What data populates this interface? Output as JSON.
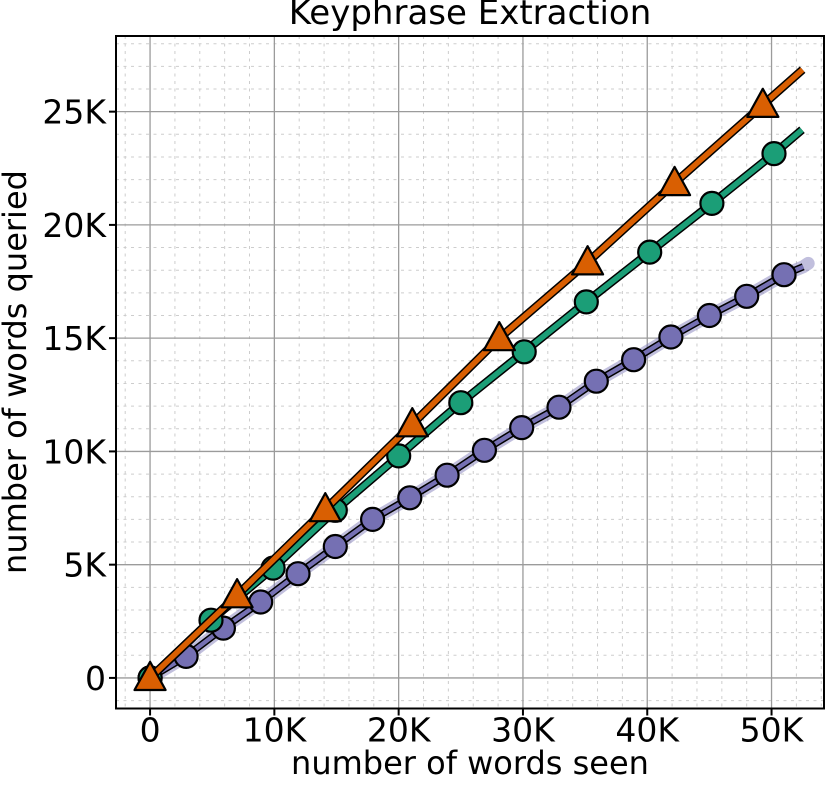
{
  "chart_data": {
    "type": "line",
    "title": "Keyphrase Extraction",
    "xlabel": "number of words seen",
    "ylabel": "number of words queried",
    "units": "axis values in thousands of words (K)",
    "xlim": [
      -2.74,
      54.22
    ],
    "ylim": [
      -1.35,
      28.34
    ],
    "legend": false,
    "grid": {
      "major": true,
      "minor": true,
      "x_minor_step": 2,
      "y_minor_step": 1,
      "major_color": "#9b9b9b",
      "minor_color": "#cdcdcd"
    },
    "x_ticks": [
      {
        "v": 0,
        "label": "0"
      },
      {
        "v": 10,
        "label": "10K"
      },
      {
        "v": 20,
        "label": "20K"
      },
      {
        "v": 30,
        "label": "30K"
      },
      {
        "v": 40,
        "label": "40K"
      },
      {
        "v": 50,
        "label": "50K"
      }
    ],
    "y_ticks": [
      {
        "v": 0,
        "label": "0"
      },
      {
        "v": 5,
        "label": "5K"
      },
      {
        "v": 10,
        "label": "10K"
      },
      {
        "v": 15,
        "label": "15K"
      },
      {
        "v": 20,
        "label": "20K"
      },
      {
        "v": 25,
        "label": "25K"
      }
    ],
    "series": [
      {
        "name": "purple-circle-series",
        "marker": "circle",
        "marker_size": 11.5,
        "line_width": 4.3,
        "color": "#7570b3",
        "band": {
          "color": "#7570b3",
          "opacity": 0.45,
          "width": 13,
          "end": [
            52.95,
            18.3
          ]
        },
        "points": [
          [
            0,
            0
          ],
          [
            2.9,
            0.95
          ],
          [
            5.9,
            2.2
          ],
          [
            8.9,
            3.35
          ],
          [
            11.9,
            4.6
          ],
          [
            14.9,
            5.8
          ],
          [
            17.9,
            7.0
          ],
          [
            20.9,
            7.95
          ],
          [
            23.9,
            8.95
          ],
          [
            26.9,
            10.05
          ],
          [
            29.9,
            11.05
          ],
          [
            32.9,
            11.95
          ],
          [
            35.9,
            13.1
          ],
          [
            38.9,
            14.05
          ],
          [
            41.9,
            15.05
          ],
          [
            45.0,
            16.0
          ],
          [
            48.0,
            16.85
          ],
          [
            51.0,
            17.8
          ]
        ],
        "line_end": [
          52.55,
          18.15
        ]
      },
      {
        "name": "green-circle-series",
        "marker": "circle",
        "marker_size": 11.5,
        "line_width": 5.5,
        "color": "#1b9e77",
        "points": [
          [
            0,
            0
          ],
          [
            4.9,
            2.55
          ],
          [
            9.9,
            4.85
          ],
          [
            14.9,
            7.4
          ],
          [
            20.0,
            9.8
          ],
          [
            25.0,
            12.15
          ],
          [
            30.1,
            14.4
          ],
          [
            35.1,
            16.6
          ],
          [
            40.2,
            18.8
          ],
          [
            45.2,
            20.95
          ],
          [
            50.2,
            23.15
          ]
        ],
        "line_end": [
          52.45,
          24.2
        ]
      },
      {
        "name": "orange-triangle-series",
        "marker": "triangle",
        "marker_size": 11.5,
        "line_width": 5.5,
        "color": "#d95f02",
        "points": [
          [
            0,
            0
          ],
          [
            7.0,
            3.65
          ],
          [
            14.1,
            7.45
          ],
          [
            21.1,
            11.2
          ],
          [
            28.1,
            15.0
          ],
          [
            35.2,
            18.35
          ],
          [
            42.2,
            21.85
          ],
          [
            49.3,
            25.3
          ]
        ],
        "line_end": [
          52.5,
          26.85
        ]
      }
    ]
  }
}
